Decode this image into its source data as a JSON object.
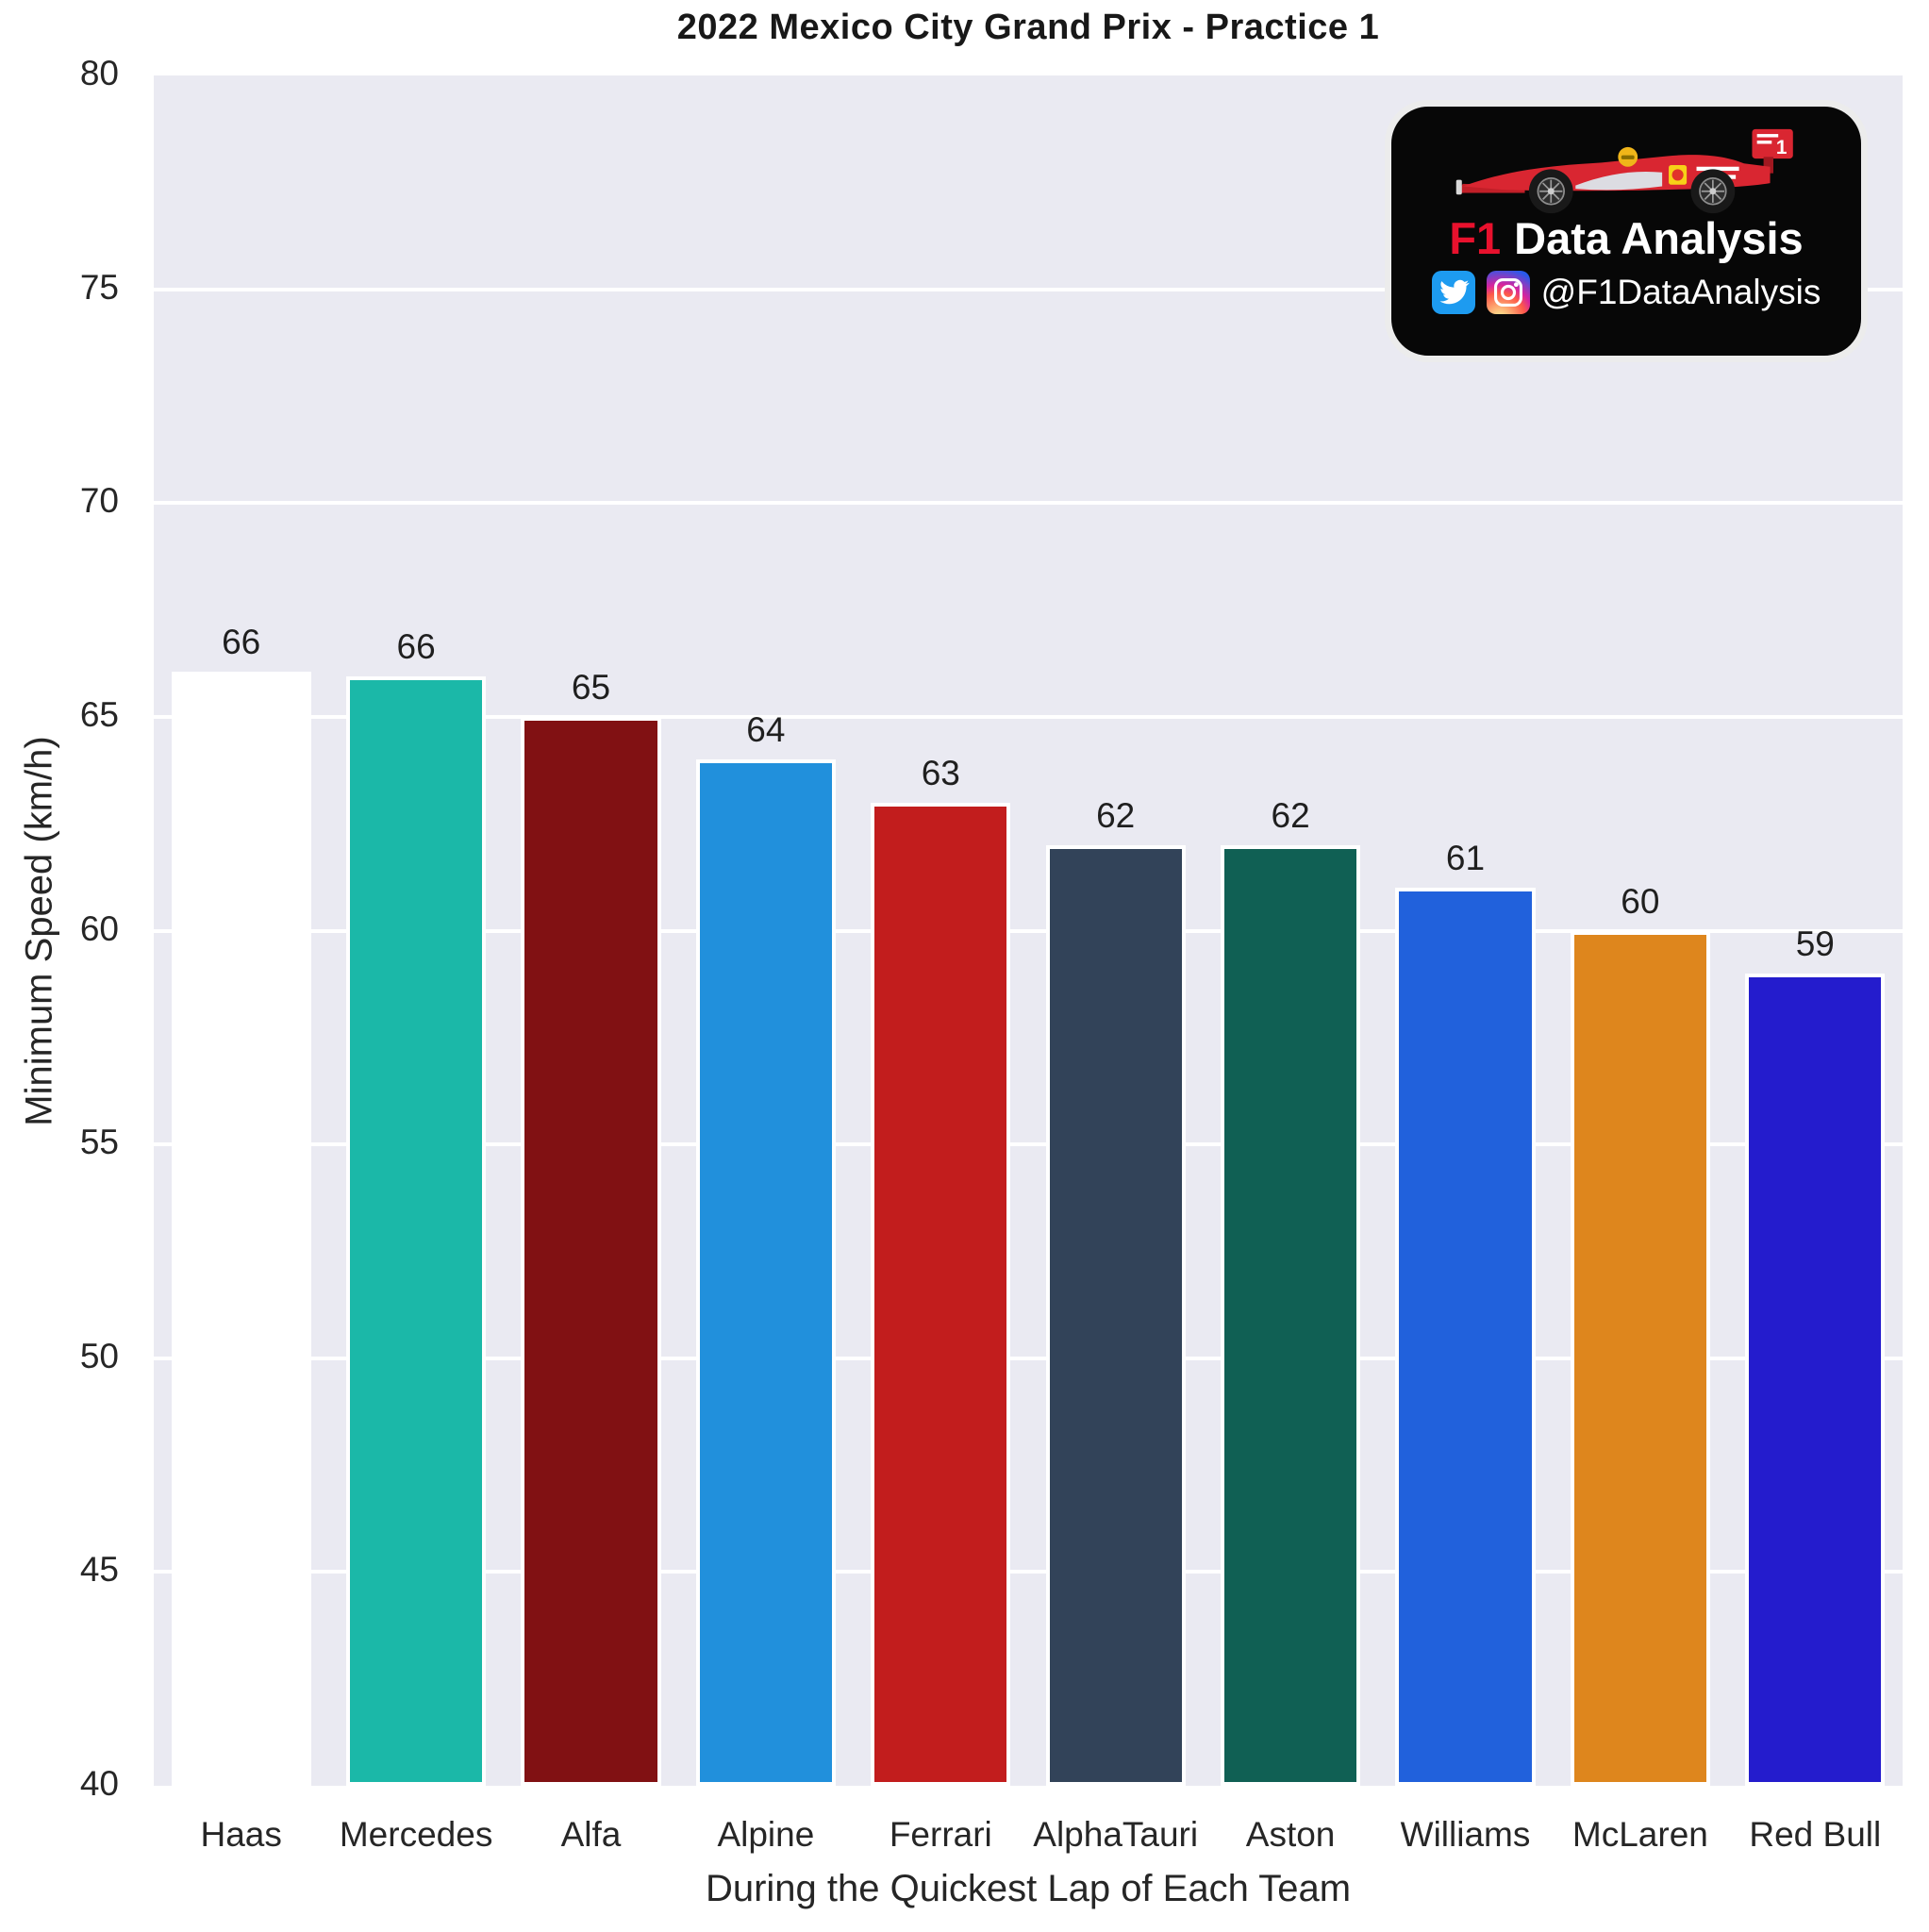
{
  "chart_data": {
    "type": "bar",
    "title": "2022 Mexico City Grand Prix - Practice 1",
    "xlabel": "During the Quickest Lap of Each Team",
    "ylabel": "Minimum Speed (km/h)",
    "categories": [
      "Haas",
      "Mercedes",
      "Alfa",
      "Alpine",
      "Ferrari",
      "AlphaTauri",
      "Aston",
      "Williams",
      "McLaren",
      "Red Bull"
    ],
    "values": [
      66,
      66,
      65,
      64,
      63,
      62,
      62,
      61,
      60,
      59
    ],
    "precise_values": [
      66.05,
      65.95,
      65,
      64,
      63,
      62,
      62,
      61,
      60,
      59
    ],
    "bar_colors": [
      "#ffffff",
      "#1bb8a8",
      "#811113",
      "#2190dc",
      "#c21d1d",
      "#324359",
      "#106054",
      "#2161dc",
      "#de861d",
      "#241ccd"
    ],
    "ylim": [
      40,
      80
    ],
    "yticks": [
      40,
      45,
      50,
      55,
      60,
      65,
      70,
      75,
      80
    ],
    "grid": "horizontal-white-on-lavender",
    "legend": "none",
    "plot_bg": "#EAEAF2",
    "grid_color": "#ffffff"
  },
  "watermark": {
    "brand_f1": "F1",
    "brand_rest": "Data Analysis",
    "handle": "@F1DataAnalysis",
    "colors": {
      "background": "#070707",
      "border": "#ececec",
      "f1_red": "#e8112d",
      "twitter_blue": "#1D9BF0",
      "car_red": "#d92631"
    }
  }
}
